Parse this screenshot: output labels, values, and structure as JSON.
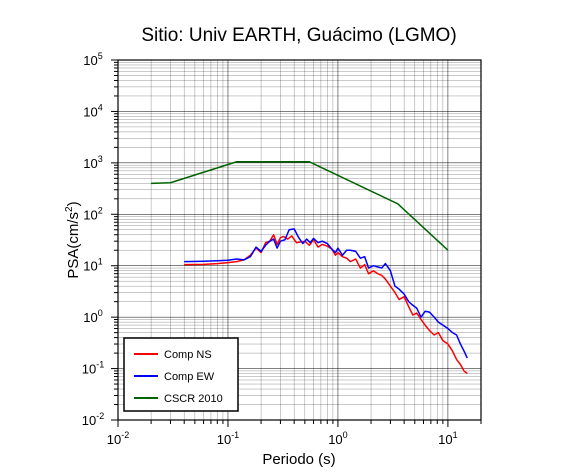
{
  "chart_data": {
    "type": "line",
    "title": "Sitio: Univ EARTH, Guácimo (LGMO)",
    "xlabel": "Periodo (s)",
    "ylabel_main": "PSA(cm/s",
    "ylabel_sup": "2",
    "ylabel_close": ")",
    "xscale": "log",
    "yscale": "log",
    "xlim": [
      0.01,
      20
    ],
    "ylim": [
      0.01,
      100000
    ],
    "grid": true,
    "legend_position": "bottom-left",
    "x_ticks": [
      {
        "value": 0.01,
        "base": "10",
        "exp": "-2"
      },
      {
        "value": 0.1,
        "base": "10",
        "exp": "-1"
      },
      {
        "value": 1,
        "base": "10",
        "exp": "0"
      },
      {
        "value": 10,
        "base": "10",
        "exp": "1"
      }
    ],
    "y_ticks": [
      {
        "value": 0.01,
        "base": "10",
        "exp": "-2"
      },
      {
        "value": 0.1,
        "base": "10",
        "exp": "-1"
      },
      {
        "value": 1,
        "base": "10",
        "exp": "0"
      },
      {
        "value": 10,
        "base": "10",
        "exp": "1"
      },
      {
        "value": 100,
        "base": "10",
        "exp": "2"
      },
      {
        "value": 1000,
        "base": "10",
        "exp": "3"
      },
      {
        "value": 10000,
        "base": "10",
        "exp": "4"
      },
      {
        "value": 100000,
        "base": "10",
        "exp": "5"
      }
    ],
    "series": [
      {
        "name": "Comp NS",
        "color": "#ff0000",
        "x": [
          0.04,
          0.06,
          0.08,
          0.1,
          0.12,
          0.14,
          0.16,
          0.18,
          0.2,
          0.22,
          0.24,
          0.26,
          0.28,
          0.3,
          0.32,
          0.35,
          0.38,
          0.42,
          0.46,
          0.5,
          0.55,
          0.6,
          0.66,
          0.72,
          0.8,
          0.88,
          0.95,
          1.0,
          1.1,
          1.2,
          1.3,
          1.45,
          1.6,
          1.75,
          1.9,
          2.1,
          2.3,
          2.5,
          2.7,
          3.0,
          3.3,
          3.6,
          4.0,
          4.4,
          4.8,
          5.2,
          5.7,
          6.2,
          6.8,
          7.5,
          8.2,
          9.0,
          10,
          11,
          12,
          13,
          14,
          15
        ],
        "y": [
          10.5,
          10.6,
          11.0,
          11.5,
          12.0,
          13.0,
          16.0,
          22.0,
          18.0,
          28.0,
          30.0,
          40.0,
          26.0,
          35.0,
          37.0,
          33.0,
          38.0,
          28.0,
          29.0,
          30.0,
          25.0,
          32.0,
          23.0,
          26.0,
          24.0,
          21.0,
          16.0,
          18.0,
          15.0,
          14.0,
          12.0,
          13.5,
          9.0,
          10.5,
          7.0,
          8.0,
          7.0,
          6.5,
          5.5,
          4.0,
          3.0,
          2.2,
          2.5,
          1.6,
          1.1,
          1.2,
          0.9,
          0.7,
          0.55,
          0.45,
          0.5,
          0.35,
          0.3,
          0.22,
          0.15,
          0.12,
          0.09,
          0.08
        ]
      },
      {
        "name": "Comp EW",
        "color": "#0000ff",
        "x": [
          0.04,
          0.06,
          0.08,
          0.1,
          0.12,
          0.14,
          0.16,
          0.18,
          0.2,
          0.22,
          0.24,
          0.26,
          0.28,
          0.3,
          0.33,
          0.36,
          0.4,
          0.44,
          0.48,
          0.52,
          0.56,
          0.6,
          0.66,
          0.72,
          0.8,
          0.88,
          0.95,
          1.0,
          1.1,
          1.2,
          1.3,
          1.45,
          1.6,
          1.75,
          1.9,
          2.1,
          2.3,
          2.5,
          2.7,
          3.0,
          3.3,
          3.6,
          4.0,
          4.4,
          4.8,
          5.2,
          5.7,
          6.2,
          6.8,
          7.5,
          8.2,
          9.0,
          10,
          11,
          12,
          13,
          14,
          15
        ],
        "y": [
          12.0,
          12.2,
          12.5,
          12.8,
          13.5,
          13.0,
          15.0,
          23.0,
          19.0,
          25.0,
          30.0,
          33.0,
          22.0,
          30.0,
          32.0,
          50.0,
          52.0,
          35.0,
          27.0,
          33.0,
          28.0,
          34.0,
          28.0,
          30.0,
          27.0,
          21.0,
          18.0,
          22.0,
          16.0,
          20.0,
          20.0,
          19.0,
          14.0,
          15.0,
          9.0,
          10.0,
          9.5,
          9.0,
          11.0,
          8.0,
          4.0,
          3.5,
          2.8,
          2.0,
          1.7,
          1.5,
          1.0,
          1.3,
          1.25,
          1.0,
          0.8,
          0.7,
          0.6,
          0.5,
          0.45,
          0.3,
          0.22,
          0.16
        ]
      },
      {
        "name": "CSCR 2010",
        "color": "#006400",
        "x": [
          0.02,
          0.03,
          0.12,
          0.55,
          3.5,
          10
        ],
        "y": [
          400,
          410,
          1050,
          1050,
          160,
          20
        ]
      }
    ]
  }
}
